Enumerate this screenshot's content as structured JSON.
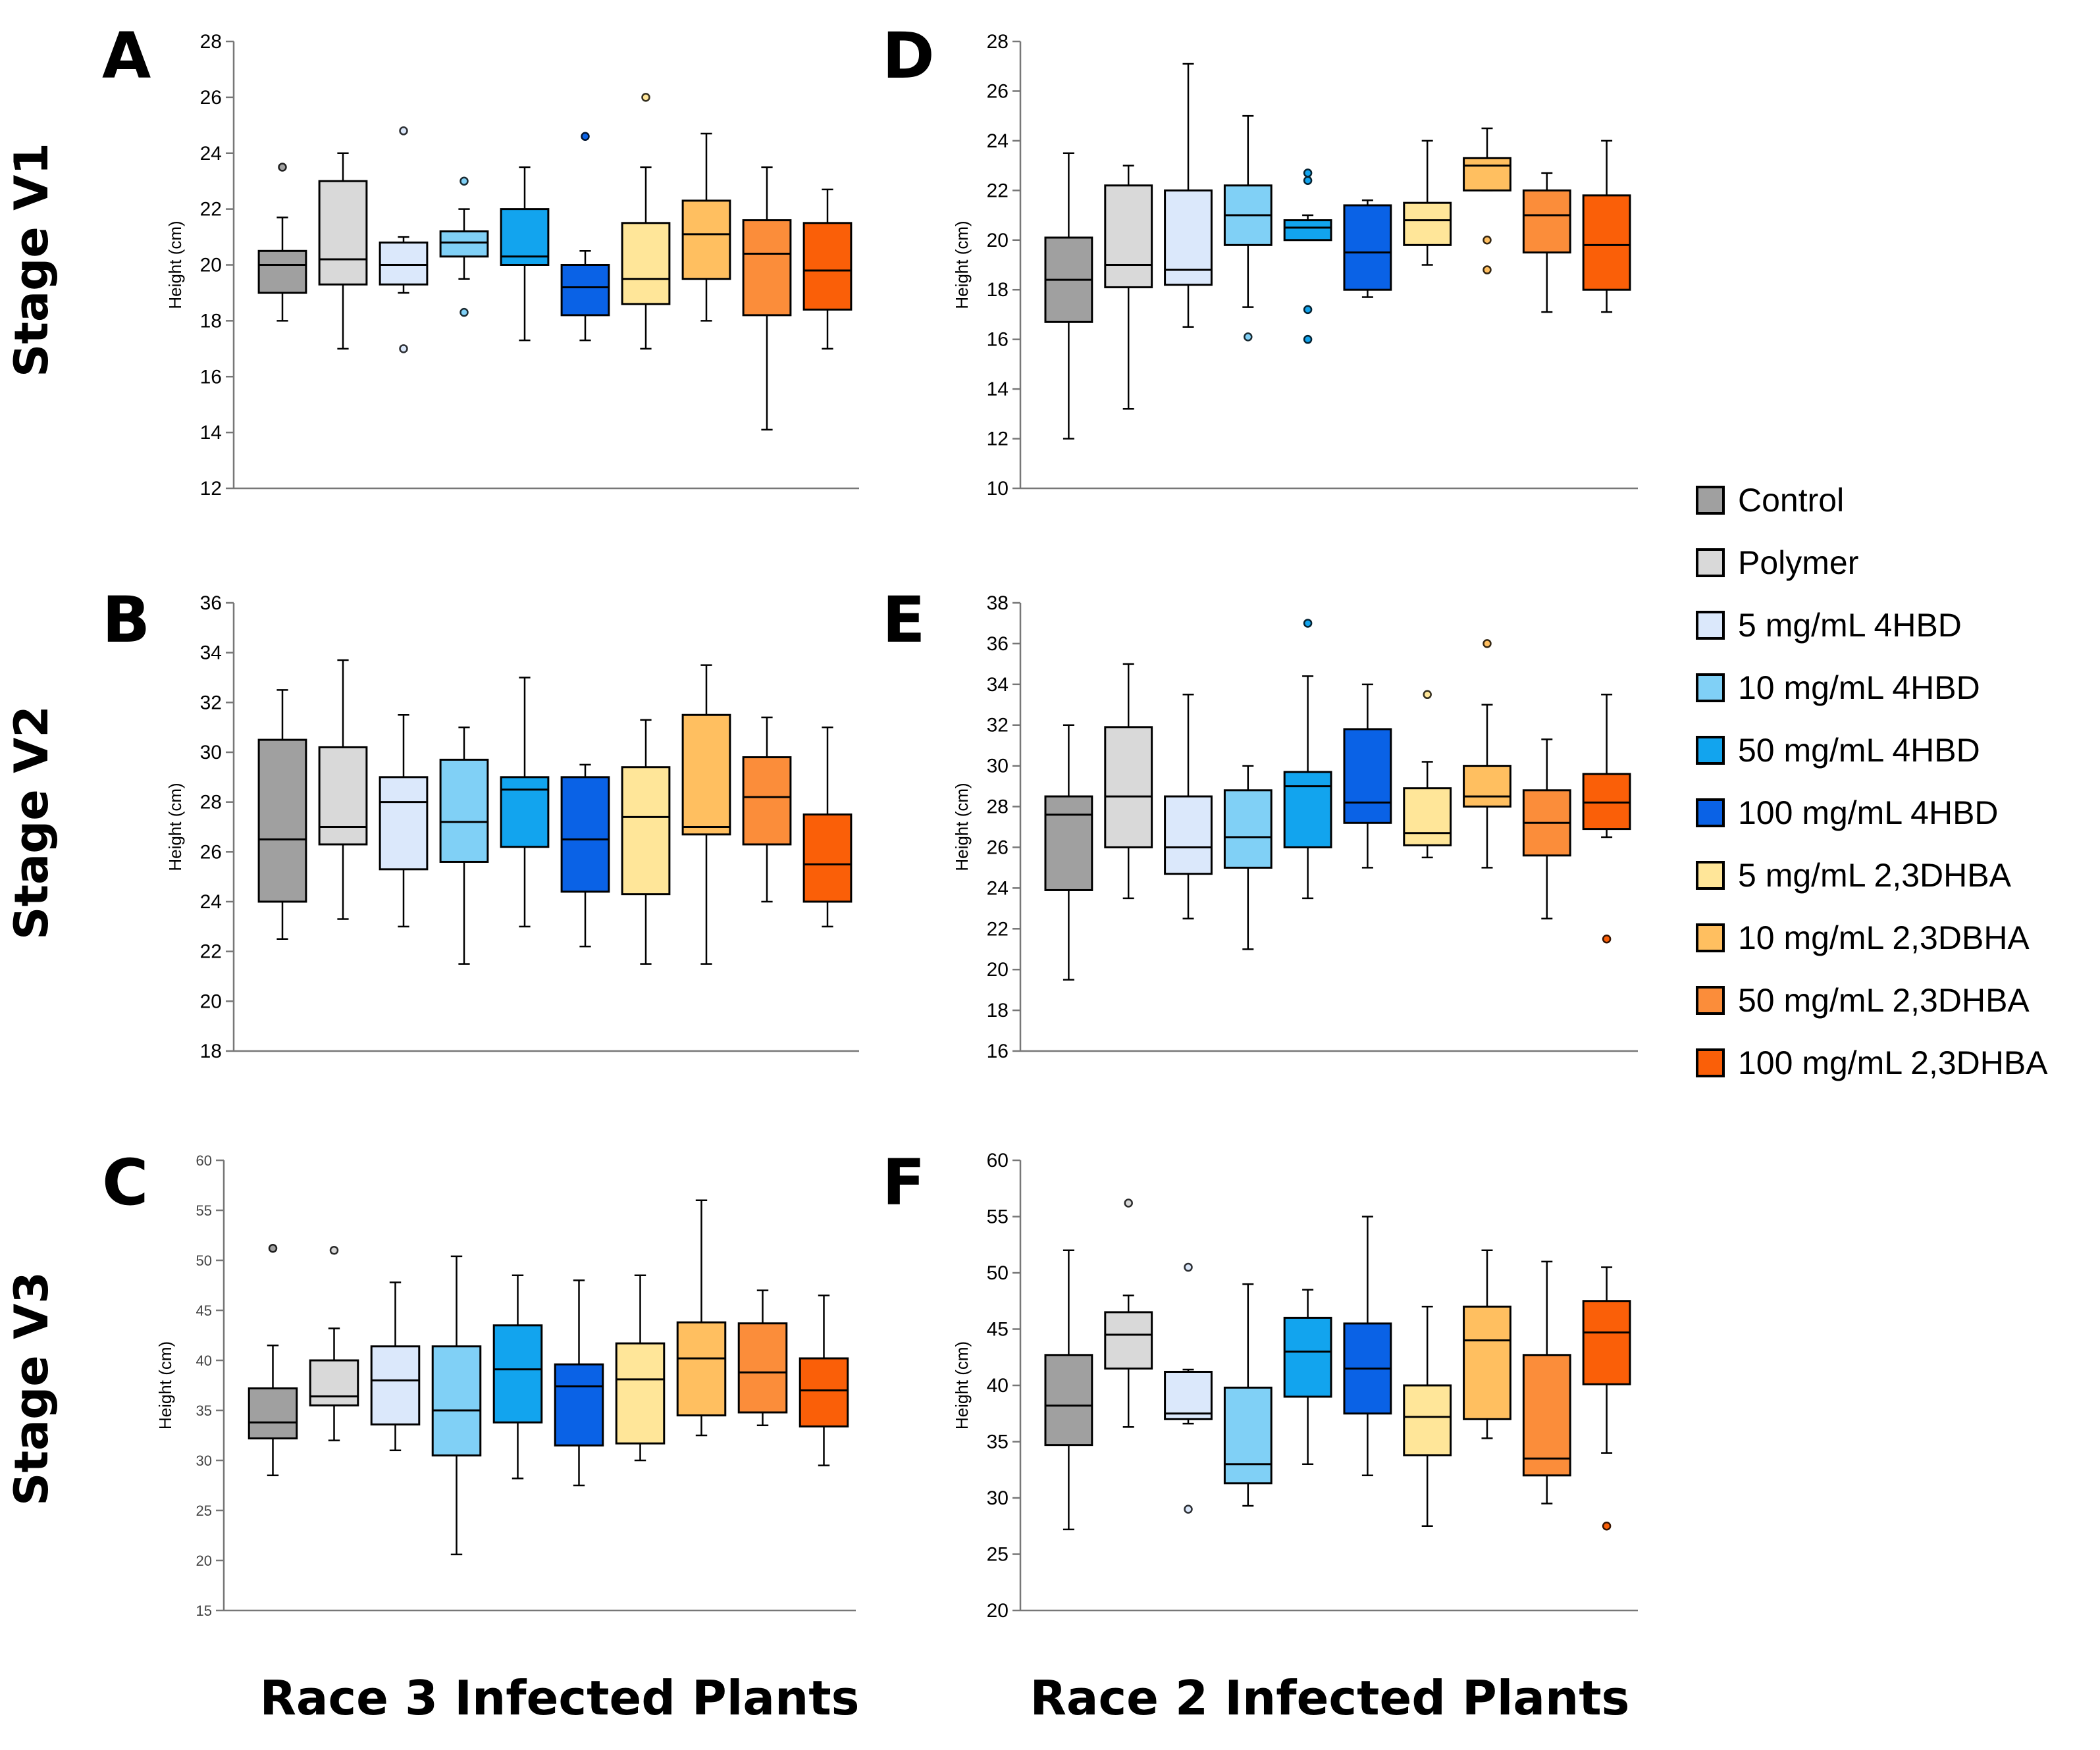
{
  "columns": [
    "Race 3 Infected Plants",
    "Race 2 Infected Plants"
  ],
  "stages": [
    "Stage V1",
    "Stage V2",
    "Stage V3"
  ],
  "legend": [
    {
      "label": "Control",
      "color": "#a0a0a0"
    },
    {
      "label": "Polymer",
      "color": "#d9d9d9"
    },
    {
      "label": "5 mg/mL 4HBD",
      "color": "#dbe8fb"
    },
    {
      "label": "10 mg/mL 4HBD",
      "color": "#80d0f6"
    },
    {
      "label": " 50 mg/mL 4HBD",
      "color": "#12a4ee"
    },
    {
      "label": "100 mg/mL 4HBD",
      "color": "#0a62e6"
    },
    {
      "label": "5 mg/mL 2,3DHBA",
      "color": "#ffe699"
    },
    {
      "label": "10 mg/mL 2,3DBHA",
      "color": "#ffbf60"
    },
    {
      "label": "50 mg/mL 2,3DHBA",
      "color": "#fb8d3a"
    },
    {
      "label": "100 mg/mL 2,3DHBA",
      "color": "#fa5f08"
    }
  ],
  "chart_data": [
    {
      "panel": "A",
      "type": "box",
      "ylabel": "Height (cm)",
      "ylim": [
        12,
        28
      ],
      "yticks": [
        12,
        14,
        16,
        18,
        20,
        22,
        24,
        26,
        28
      ],
      "boxes": [
        {
          "min": 18,
          "q1": 19,
          "median": 20,
          "q3": 20.5,
          "max": 21.7,
          "outliers": [
            23.5
          ]
        },
        {
          "min": 17,
          "q1": 19.3,
          "median": 20.2,
          "q3": 23,
          "max": 24,
          "outliers": []
        },
        {
          "min": 19,
          "q1": 19.3,
          "median": 20,
          "q3": 20.8,
          "max": 21,
          "outliers": [
            24.8,
            17
          ]
        },
        {
          "min": 19.5,
          "q1": 20.3,
          "median": 20.8,
          "q3": 21.2,
          "max": 22,
          "outliers": [
            23,
            18.3
          ]
        },
        {
          "min": 17.3,
          "q1": 20,
          "median": 20.3,
          "q3": 22,
          "max": 23.5,
          "outliers": []
        },
        {
          "min": 17.3,
          "q1": 18.2,
          "median": 19.2,
          "q3": 20,
          "max": 20.5,
          "outliers": [
            24.6
          ]
        },
        {
          "min": 17,
          "q1": 18.6,
          "median": 19.5,
          "q3": 21.5,
          "max": 23.5,
          "outliers": [
            26
          ]
        },
        {
          "min": 18,
          "q1": 19.5,
          "median": 21.1,
          "q3": 22.3,
          "max": 24.7,
          "outliers": []
        },
        {
          "min": 14.1,
          "q1": 18.2,
          "median": 20.4,
          "q3": 21.6,
          "max": 23.5,
          "outliers": []
        },
        {
          "min": 17,
          "q1": 18.4,
          "median": 19.8,
          "q3": 21.5,
          "max": 22.7,
          "outliers": []
        }
      ]
    },
    {
      "panel": "B",
      "type": "box",
      "ylabel": "Height (cm)",
      "ylim": [
        18,
        36
      ],
      "yticks": [
        18,
        20,
        22,
        24,
        26,
        28,
        30,
        32,
        34,
        36
      ],
      "boxes": [
        {
          "min": 22.5,
          "q1": 24,
          "median": 26.5,
          "q3": 30.5,
          "max": 32.5,
          "outliers": []
        },
        {
          "min": 23.3,
          "q1": 26.3,
          "median": 27,
          "q3": 30.2,
          "max": 33.7,
          "outliers": []
        },
        {
          "min": 23,
          "q1": 25.3,
          "median": 28,
          "q3": 29,
          "max": 31.5,
          "outliers": []
        },
        {
          "min": 21.5,
          "q1": 25.6,
          "median": 27.2,
          "q3": 29.7,
          "max": 31,
          "outliers": []
        },
        {
          "min": 23,
          "q1": 26.2,
          "median": 28.5,
          "q3": 29,
          "max": 33,
          "outliers": []
        },
        {
          "min": 22.2,
          "q1": 24.4,
          "median": 26.5,
          "q3": 29,
          "max": 29.5,
          "outliers": []
        },
        {
          "min": 21.5,
          "q1": 24.3,
          "median": 27.4,
          "q3": 29.4,
          "max": 31.3,
          "outliers": []
        },
        {
          "min": 21.5,
          "q1": 26.7,
          "median": 27,
          "q3": 31.5,
          "max": 33.5,
          "outliers": []
        },
        {
          "min": 24,
          "q1": 26.3,
          "median": 28.2,
          "q3": 29.8,
          "max": 31.4,
          "outliers": []
        },
        {
          "min": 23,
          "q1": 24,
          "median": 25.5,
          "q3": 27.5,
          "max": 31,
          "outliers": []
        }
      ]
    },
    {
      "panel": "C",
      "type": "box",
      "ylabel": "Height (cm)",
      "ylim": [
        15,
        60
      ],
      "yticks": [
        15,
        20,
        25,
        30,
        35,
        40,
        45,
        50,
        55,
        60
      ],
      "small_ticks": true,
      "boxes": [
        {
          "min": 28.5,
          "q1": 32.2,
          "median": 33.8,
          "q3": 37.2,
          "max": 41.5,
          "outliers": [
            51.2
          ]
        },
        {
          "min": 32,
          "q1": 35.5,
          "median": 36.4,
          "q3": 40,
          "max": 43.2,
          "outliers": [
            51
          ]
        },
        {
          "min": 31,
          "q1": 33.6,
          "median": 38,
          "q3": 41.4,
          "max": 47.8,
          "outliers": []
        },
        {
          "min": 20.6,
          "q1": 30.5,
          "median": 35,
          "q3": 41.4,
          "max": 50.4,
          "outliers": []
        },
        {
          "min": 28.2,
          "q1": 33.8,
          "median": 39.1,
          "q3": 43.5,
          "max": 48.5,
          "outliers": []
        },
        {
          "min": 27.5,
          "q1": 31.5,
          "median": 37.4,
          "q3": 39.6,
          "max": 48,
          "outliers": []
        },
        {
          "min": 30,
          "q1": 31.7,
          "median": 38.1,
          "q3": 41.7,
          "max": 48.5,
          "outliers": []
        },
        {
          "min": 32.5,
          "q1": 34.5,
          "median": 40.2,
          "q3": 43.8,
          "max": 56,
          "outliers": []
        },
        {
          "min": 33.5,
          "q1": 34.8,
          "median": 38.8,
          "q3": 43.7,
          "max": 47,
          "outliers": []
        },
        {
          "min": 29.5,
          "q1": 33.4,
          "median": 37,
          "q3": 40.2,
          "max": 46.5,
          "outliers": []
        }
      ]
    },
    {
      "panel": "D",
      "type": "box",
      "ylabel": "Height (cm)",
      "ylim": [
        10,
        28
      ],
      "yticks": [
        10,
        12,
        14,
        16,
        18,
        20,
        22,
        24,
        26,
        28
      ],
      "boxes": [
        {
          "min": 12,
          "q1": 16.7,
          "median": 18.4,
          "q3": 20.1,
          "max": 23.5,
          "outliers": []
        },
        {
          "min": 13.2,
          "q1": 18.1,
          "median": 19,
          "q3": 22.2,
          "max": 23,
          "outliers": []
        },
        {
          "min": 16.5,
          "q1": 18.2,
          "median": 18.8,
          "q3": 22,
          "max": 27.1,
          "outliers": []
        },
        {
          "min": 17.3,
          "q1": 19.8,
          "median": 21,
          "q3": 22.2,
          "max": 25,
          "outliers": [
            16.1
          ]
        },
        {
          "min": 20,
          "q1": 20,
          "median": 20.5,
          "q3": 20.8,
          "max": 21,
          "outliers": [
            22.7,
            22.4,
            17.2,
            16
          ]
        },
        {
          "min": 17.7,
          "q1": 18,
          "median": 19.5,
          "q3": 21.4,
          "max": 21.6,
          "outliers": []
        },
        {
          "min": 19,
          "q1": 19.8,
          "median": 20.8,
          "q3": 21.5,
          "max": 24,
          "outliers": []
        },
        {
          "min": 22,
          "q1": 22,
          "median": 23,
          "q3": 23.3,
          "max": 24.5,
          "outliers": [
            20,
            18.8
          ]
        },
        {
          "min": 17.1,
          "q1": 19.5,
          "median": 21,
          "q3": 22,
          "max": 22.7,
          "outliers": []
        },
        {
          "min": 17.1,
          "q1": 18,
          "median": 19.8,
          "q3": 21.8,
          "max": 24,
          "outliers": []
        }
      ]
    },
    {
      "panel": "E",
      "type": "box",
      "ylabel": "Height (cm)",
      "ylim": [
        16,
        38
      ],
      "yticks": [
        16,
        18,
        20,
        22,
        24,
        26,
        28,
        30,
        32,
        34,
        36,
        38
      ],
      "boxes": [
        {
          "min": 19.5,
          "q1": 23.9,
          "median": 27.6,
          "q3": 28.5,
          "max": 32,
          "outliers": []
        },
        {
          "min": 23.5,
          "q1": 26,
          "median": 28.5,
          "q3": 31.9,
          "max": 35,
          "outliers": []
        },
        {
          "min": 22.5,
          "q1": 24.7,
          "median": 26,
          "q3": 28.5,
          "max": 33.5,
          "outliers": []
        },
        {
          "min": 21,
          "q1": 25,
          "median": 26.5,
          "q3": 28.8,
          "max": 30,
          "outliers": []
        },
        {
          "min": 23.5,
          "q1": 26,
          "median": 29,
          "q3": 29.7,
          "max": 34.4,
          "outliers": [
            37
          ]
        },
        {
          "min": 25,
          "q1": 27.2,
          "median": 28.2,
          "q3": 31.8,
          "max": 34,
          "outliers": []
        },
        {
          "min": 25.5,
          "q1": 26.1,
          "median": 26.7,
          "q3": 28.9,
          "max": 30.2,
          "outliers": [
            33.5
          ]
        },
        {
          "min": 25,
          "q1": 28,
          "median": 28.5,
          "q3": 30,
          "max": 33,
          "outliers": [
            36
          ]
        },
        {
          "min": 22.5,
          "q1": 25.6,
          "median": 27.2,
          "q3": 28.8,
          "max": 31.3,
          "outliers": []
        },
        {
          "min": 26.5,
          "q1": 26.9,
          "median": 28.2,
          "q3": 29.6,
          "max": 33.5,
          "outliers": [
            21.5
          ]
        }
      ]
    },
    {
      "panel": "F",
      "type": "box",
      "ylabel": "Height (cm)",
      "ylim": [
        20,
        60
      ],
      "yticks": [
        20,
        25,
        30,
        35,
        40,
        45,
        50,
        55,
        60
      ],
      "boxes": [
        {
          "min": 27.2,
          "q1": 34.7,
          "median": 38.2,
          "q3": 42.7,
          "max": 52,
          "outliers": []
        },
        {
          "min": 36.3,
          "q1": 41.5,
          "median": 44.5,
          "q3": 46.5,
          "max": 48,
          "outliers": [
            56.2
          ]
        },
        {
          "min": 36.6,
          "q1": 37,
          "median": 37.5,
          "q3": 41.2,
          "max": 41.4,
          "outliers": [
            50.5,
            29
          ]
        },
        {
          "min": 29.3,
          "q1": 31.3,
          "median": 33,
          "q3": 39.8,
          "max": 49,
          "outliers": []
        },
        {
          "min": 33,
          "q1": 39,
          "median": 43,
          "q3": 46,
          "max": 48.5,
          "outliers": []
        },
        {
          "min": 32,
          "q1": 37.5,
          "median": 41.5,
          "q3": 45.5,
          "max": 55,
          "outliers": []
        },
        {
          "min": 27.5,
          "q1": 33.8,
          "median": 37.2,
          "q3": 40,
          "max": 47,
          "outliers": []
        },
        {
          "min": 35.3,
          "q1": 37,
          "median": 44,
          "q3": 47,
          "max": 52,
          "outliers": []
        },
        {
          "min": 29.5,
          "q1": 32,
          "median": 33.5,
          "q3": 42.7,
          "max": 51,
          "outliers": []
        },
        {
          "min": 34,
          "q1": 40.1,
          "median": 44.7,
          "q3": 47.5,
          "max": 50.5,
          "outliers": [
            27.5
          ]
        }
      ]
    }
  ]
}
